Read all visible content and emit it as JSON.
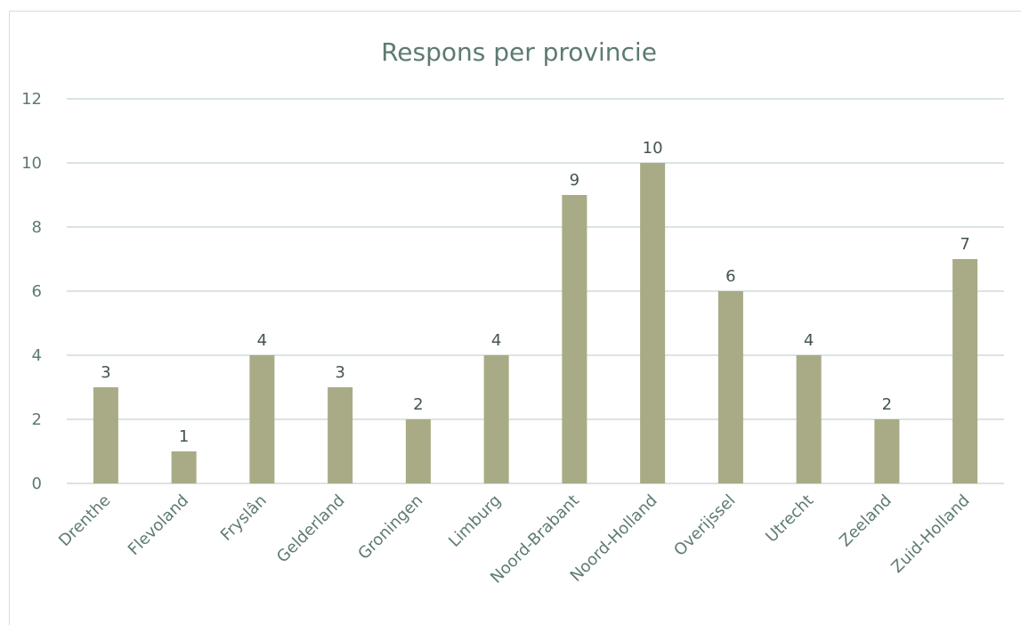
{
  "chart_data": {
    "type": "bar",
    "title": "Respons per provincie",
    "xlabel": "",
    "ylabel": "",
    "categories": [
      "Drenthe",
      "Flevoland",
      "Fryslân",
      "Gelderland",
      "Groningen",
      "Limburg",
      "Noord-Brabant",
      "Noord-Holland",
      "Overijssel",
      "Utrecht",
      "Zeeland",
      "Zuid-Holland"
    ],
    "values": [
      3,
      1,
      4,
      3,
      2,
      4,
      9,
      10,
      6,
      4,
      2,
      7
    ],
    "ylim": [
      0,
      12
    ],
    "yticks": [
      "0",
      "2",
      "4",
      "6",
      "8",
      "10",
      "12"
    ],
    "grid": true,
    "data_labels": true,
    "colors": {
      "bar": "#a8ab85",
      "grid": "#cfdcd7",
      "text": "#5d7a73"
    }
  }
}
